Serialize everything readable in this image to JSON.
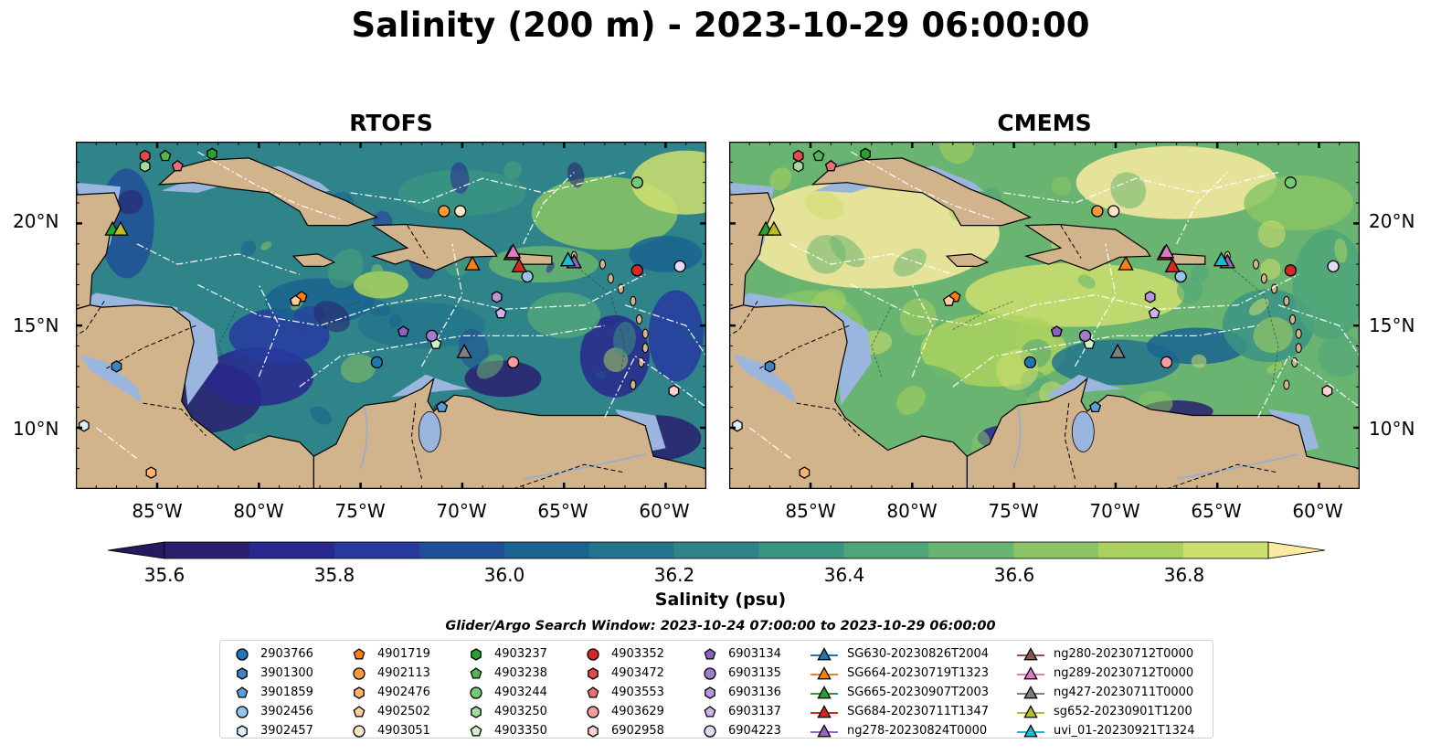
{
  "title": "Salinity (200 m) - 2023-10-29 06:00:00",
  "panels": [
    {
      "id": "rtofs",
      "title": "RTOFS"
    },
    {
      "id": "cmems",
      "title": "CMEMS"
    }
  ],
  "lat_labels": [
    "20°N",
    "15°N",
    "10°N"
  ],
  "lon_labels": [
    "85°W",
    "80°W",
    "75°W",
    "70°W",
    "65°W",
    "60°W"
  ],
  "colorbar": {
    "label": "Salinity (psu)",
    "ticks": [
      "35.6",
      "35.8",
      "36.0",
      "36.2",
      "36.4",
      "36.6",
      "36.8"
    ],
    "min": 35.55,
    "max": 36.9,
    "extend": "both",
    "colors": [
      "#2a1f6e",
      "#29288e",
      "#263aa0",
      "#1f4f98",
      "#1a6390",
      "#23748c",
      "#2e8488",
      "#3a9482",
      "#4fa47a",
      "#69b470",
      "#8ac465",
      "#acd25e",
      "#cfdf6e"
    ],
    "under_color": "#241a5c",
    "over_color": "#fbeba0"
  },
  "search_window": "Glider/Argo Search Window: 2023-10-24 07:00:00 to 2023-10-29 06:00:00",
  "legend_columns": [
    [
      {
        "label": "2903766",
        "shape": "circle",
        "color": "#1f77b4"
      },
      {
        "label": "3901300",
        "shape": "hexagon",
        "color": "#3a85c4"
      },
      {
        "label": "3901859",
        "shape": "pentagon",
        "color": "#5a9ed8"
      },
      {
        "label": "3902456",
        "shape": "circle",
        "color": "#93c6ea"
      },
      {
        "label": "3902457",
        "shape": "hexagon",
        "color": "#dbeefa"
      }
    ],
    [
      {
        "label": "4901719",
        "shape": "pentagon",
        "color": "#ff7f0e"
      },
      {
        "label": "4902113",
        "shape": "circle",
        "color": "#ff9a3a"
      },
      {
        "label": "4902476",
        "shape": "hexagon",
        "color": "#ffb36a"
      },
      {
        "label": "4902502",
        "shape": "pentagon",
        "color": "#ffcc98"
      },
      {
        "label": "4903051",
        "shape": "circle",
        "color": "#ffe6c6"
      }
    ],
    [
      {
        "label": "4903237",
        "shape": "hexagon",
        "color": "#2ca02c"
      },
      {
        "label": "4903238",
        "shape": "pentagon",
        "color": "#4fb84f"
      },
      {
        "label": "4903244",
        "shape": "circle",
        "color": "#74c974"
      },
      {
        "label": "4903250",
        "shape": "hexagon",
        "color": "#a2dc9a"
      },
      {
        "label": "4903350",
        "shape": "pentagon",
        "color": "#d2f0c8"
      }
    ],
    [
      {
        "label": "4903352",
        "shape": "circle",
        "color": "#d62728"
      },
      {
        "label": "4903472",
        "shape": "hexagon",
        "color": "#e24a4a"
      },
      {
        "label": "4903553",
        "shape": "pentagon",
        "color": "#ec6f6f"
      },
      {
        "label": "4903629",
        "shape": "circle",
        "color": "#f59c9c"
      },
      {
        "label": "6902958",
        "shape": "hexagon",
        "color": "#fdd0cf"
      }
    ],
    [
      {
        "label": "6903134",
        "shape": "pentagon",
        "color": "#8c5fc0"
      },
      {
        "label": "6903135",
        "shape": "circle",
        "color": "#a27bcf"
      },
      {
        "label": "6903136",
        "shape": "hexagon",
        "color": "#b796dc"
      },
      {
        "label": "6903137",
        "shape": "pentagon",
        "color": "#cdb3ea"
      },
      {
        "label": "6904223",
        "shape": "circle",
        "color": "#e6d8f8"
      }
    ],
    [
      {
        "label": "SG630-20230826T2004",
        "shape": "triangle",
        "color": "#1f77b4"
      },
      {
        "label": "SG664-20230719T1323",
        "shape": "triangle",
        "color": "#ff7f0e"
      },
      {
        "label": "SG665-20230907T2003",
        "shape": "triangle",
        "color": "#2ca02c"
      },
      {
        "label": "SG684-20230711T1347",
        "shape": "triangle",
        "color": "#d62728"
      },
      {
        "label": "ng278-20230824T0000",
        "shape": "triangle",
        "color": "#9467bd"
      }
    ],
    [
      {
        "label": "ng280-20230712T0000",
        "shape": "triangle",
        "color": "#8c564b"
      },
      {
        "label": "ng289-20230712T0000",
        "shape": "triangle",
        "color": "#e377c2"
      },
      {
        "label": "ng427-20230711T0000",
        "shape": "triangle",
        "color": "#7f7f7f"
      },
      {
        "label": "sg652-20230901T1200",
        "shape": "triangle",
        "color": "#bcbd22"
      },
      {
        "label": "uvi_01-20230921T1324",
        "shape": "triangle",
        "color": "#17becf"
      }
    ]
  ]
}
